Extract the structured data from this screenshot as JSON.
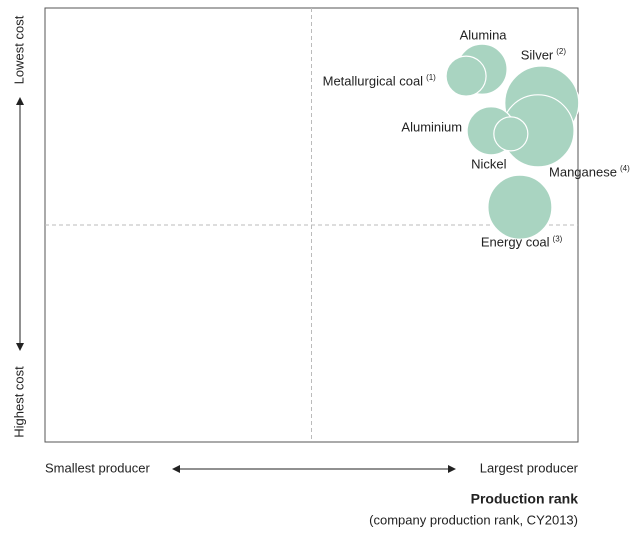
{
  "chart_data": {
    "type": "bubble",
    "x_label_left": "Smallest producer",
    "x_label_right": "Largest producer",
    "y_label_top": "Lowest cost",
    "y_label_bottom": "Highest cost",
    "x_title": "Production rank",
    "x_subtitle": "(company production rank, CY2013)",
    "xlim": [
      0,
      100
    ],
    "ylim": [
      0,
      100
    ],
    "quadrant_lines": {
      "x": 50,
      "y": 50
    },
    "color": "#a9d4c1",
    "bubbles": [
      {
        "name": "Alumina",
        "x": 82.0,
        "y": 85.9,
        "size": 25
      },
      {
        "name": "Metallurgical coal",
        "note": "(1)",
        "x": 79.0,
        "y": 84.3,
        "size": 20
      },
      {
        "name": "Silver",
        "note": "(2)",
        "x": 93.2,
        "y": 78.1,
        "size": 37
      },
      {
        "name": "Manganese",
        "note": "(4)",
        "x": 92.5,
        "y": 71.7,
        "size": 36
      },
      {
        "name": "Aluminium",
        "x": 83.7,
        "y": 71.7,
        "size": 24
      },
      {
        "name": "Nickel",
        "x": 87.4,
        "y": 71.0,
        "size": 17
      },
      {
        "name": "Energy coal",
        "note": "(3)",
        "x": 89.1,
        "y": 54.1,
        "size": 32
      }
    ]
  }
}
